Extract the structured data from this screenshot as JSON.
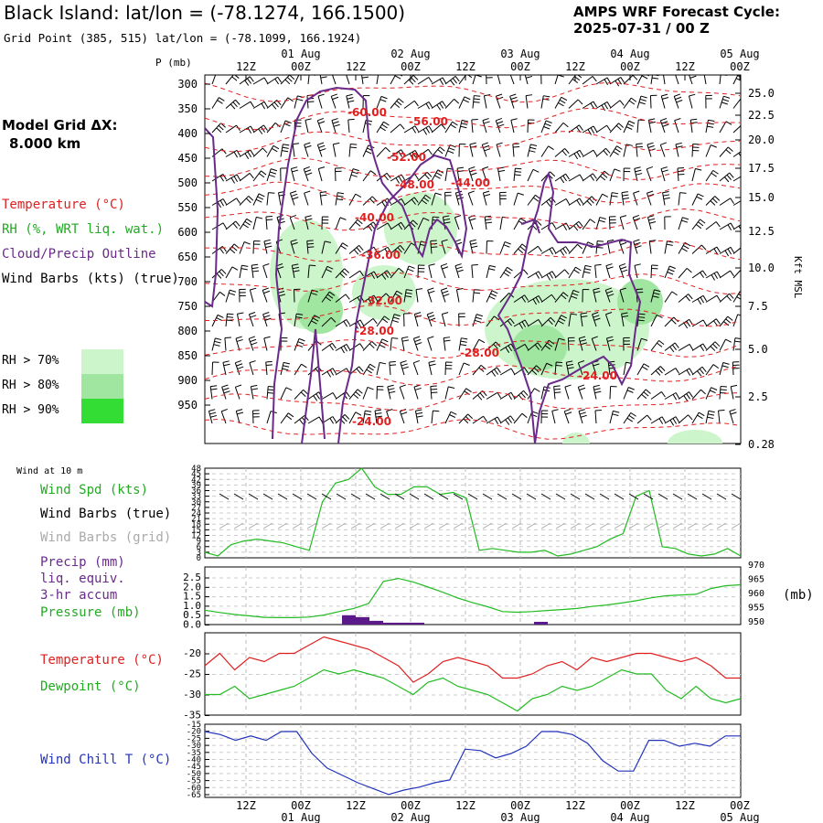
{
  "header": {
    "title": "Black Island:  lat/lon = (-78.1274, 166.1500)",
    "grid_point": "Grid Point (385, 515) lat/lon = (-78.1099, 166.1924)",
    "cycle_line1": "AMPS WRF Forecast Cycle:",
    "cycle_line2": "2025-07-31 / 00  Z"
  },
  "legend": {
    "model_grid_line1": "Model Grid ΔX:",
    "model_grid_line2": "8.000 km",
    "temperature": "Temperature (°C)",
    "rh": "RH (%, WRT liq. wat.)",
    "cloud": "Cloud/Precip Outline",
    "wind_barbs": "Wind Barbs (kts) (true)",
    "rh70": "RH > 70%",
    "rh80": "RH > 80%",
    "rh90": "RH > 90%",
    "p_unit": "P (mb)",
    "kft_label": "Kft MSL",
    "wind10m": "Wind at 10 m",
    "wind_spd": "Wind Spd (kts)",
    "wind_barbs_true": "Wind Barbs (true)",
    "wind_barbs_grid": "Wind Barbs (grid)",
    "precip": "Precip (mm)",
    "liq": "liq. equiv.",
    "accum": "3-hr accum",
    "pressure": "Pressure (mb)",
    "mb_unit": "(mb)",
    "temp2": "Temperature (°C)",
    "dewpoint": "Dewpoint (°C)",
    "windchill": "Wind Chill T (°C)"
  },
  "colors": {
    "temperature": "#e02020",
    "rh70": "#ccf5cc",
    "rh80": "#a0e6a0",
    "rh90": "#33dd33",
    "cloud": "#6a2a8a",
    "green_line": "#22bb22",
    "precip_bar": "#5a1a8a",
    "windchill": "#2233bb",
    "barb_grid": "#aaaaaa"
  },
  "time_axis": {
    "top_labels": [
      "12Z",
      "00Z",
      "12Z",
      "00Z",
      "12Z",
      "00Z",
      "12Z",
      "00Z",
      "12Z",
      "00Z"
    ],
    "top_dates": [
      "01 Aug",
      "02 Aug",
      "03 Aug",
      "04 Aug",
      "05 Aug"
    ],
    "bottom_labels": [
      "12Z",
      "00Z",
      "12Z",
      "00Z",
      "12Z",
      "00Z",
      "12Z",
      "00Z",
      "12Z",
      "00Z"
    ],
    "bottom_dates": [
      "01 Aug",
      "02 Aug",
      "03 Aug",
      "04 Aug",
      "05 Aug"
    ]
  },
  "chart_data": [
    {
      "type": "heatmap",
      "y_ticks": [
        "300",
        "350",
        "400",
        "450",
        "500",
        "550",
        "600",
        "650",
        "700",
        "750",
        "800",
        "850",
        "900",
        "950"
      ],
      "right_ticks": [
        "25.0",
        "22.5",
        "20.0",
        "17.5",
        "15.0",
        "12.5",
        "10.0",
        "7.5",
        "5.0",
        "2.5",
        "0.28"
      ],
      "temp_labels": [
        "-60.00",
        "-56.00",
        "-52.00",
        "-48.00",
        "-44.00",
        "-40.00",
        "-36.00",
        "-32.00",
        "-28.00",
        "-28.00",
        "-24.00",
        "-24.00"
      ]
    },
    {
      "type": "line",
      "y_ticks": [
        "48",
        "45",
        "42",
        "39",
        "36",
        "33",
        "30",
        "27",
        "24",
        "21",
        "18",
        "15",
        "12",
        "9",
        "6",
        "3",
        "0"
      ],
      "ylim": [
        0,
        48
      ],
      "series": [
        {
          "name": "Wind Spd (kts)",
          "values": [
            3,
            1,
            7,
            9,
            10,
            9,
            8,
            6,
            4,
            30,
            40,
            42,
            48,
            38,
            34,
            34,
            38,
            38,
            34,
            35,
            32,
            4,
            5,
            4,
            3,
            3,
            4,
            1,
            2,
            4,
            6,
            10,
            13,
            33,
            36,
            6,
            5,
            2,
            1,
            2,
            5,
            1
          ]
        }
      ]
    },
    {
      "type": "line",
      "y_ticks_left": [
        "2.5",
        "2.0",
        "1.5",
        "1.0",
        "0.5",
        "0.0"
      ],
      "y_ticks_right": [
        "970",
        "965",
        "960",
        "955",
        "950"
      ],
      "ylim_left": [
        0,
        2.5
      ],
      "ylim_right": [
        950,
        970
      ],
      "series": [
        {
          "name": "Pressure (mb)",
          "values": [
            955.0,
            954.2,
            953.5,
            953.0,
            952.5,
            952.4,
            952.4,
            952.6,
            953.3,
            954.5,
            955.6,
            957.3,
            965.0,
            966.0,
            964.8,
            963.0,
            961.2,
            959.2,
            957.6,
            956.2,
            954.5,
            954.3,
            954.5,
            954.9,
            955.2,
            955.6,
            956.3,
            956.8,
            957.5,
            958.3,
            959.3,
            960.0,
            960.3,
            960.5,
            962.5,
            963.5,
            963.8
          ]
        }
      ],
      "precip_bars": [
        0.5,
        0.4,
        0.2,
        0.1,
        0.1,
        0.1
      ]
    },
    {
      "type": "line",
      "y_ticks": [
        "-20",
        "-25",
        "-30",
        "-35"
      ],
      "ylim": [
        -35,
        -15
      ],
      "series": [
        {
          "name": "Temperature (°C)",
          "values": [
            -23,
            -20,
            -24,
            -21,
            -22,
            -20,
            -20,
            -18,
            -16,
            -17,
            -18,
            -19,
            -21,
            -23,
            -27,
            -25,
            -22,
            -21,
            -22,
            -23,
            -26,
            -26,
            -25,
            -23,
            -22,
            -24,
            -21,
            -22,
            -21,
            -20,
            -20,
            -21,
            -22,
            -21,
            -23,
            -26,
            -26
          ]
        },
        {
          "name": "Dewpoint (°C)",
          "values": [
            -30,
            -30,
            -28,
            -31,
            -30,
            -29,
            -28,
            -26,
            -24,
            -25,
            -24,
            -25,
            -26,
            -28,
            -30,
            -27,
            -26,
            -28,
            -29,
            -30,
            -32,
            -34,
            -31,
            -30,
            -28,
            -29,
            -28,
            -26,
            -24,
            -25,
            -25,
            -29,
            -31,
            -28,
            -31,
            -32,
            -31
          ]
        }
      ]
    },
    {
      "type": "line",
      "y_ticks": [
        "-15",
        "-20",
        "-25",
        "-30",
        "-35",
        "-40",
        "-45",
        "-50",
        "-55",
        "-60",
        "-65"
      ],
      "ylim": [
        -65,
        -15
      ],
      "series": [
        {
          "name": "Wind Chill T (°C)",
          "values": [
            -20,
            -22,
            -26,
            -23,
            -26,
            -20,
            -20,
            -35,
            -45,
            -50,
            -55,
            -59,
            -63,
            -60,
            -58,
            -55,
            -53,
            -32,
            -33,
            -38,
            -35,
            -30,
            -20,
            -20,
            -22,
            -28,
            -40,
            -47,
            -47,
            -26,
            -26,
            -30,
            -28,
            -30,
            -23,
            -23
          ]
        }
      ]
    }
  ]
}
